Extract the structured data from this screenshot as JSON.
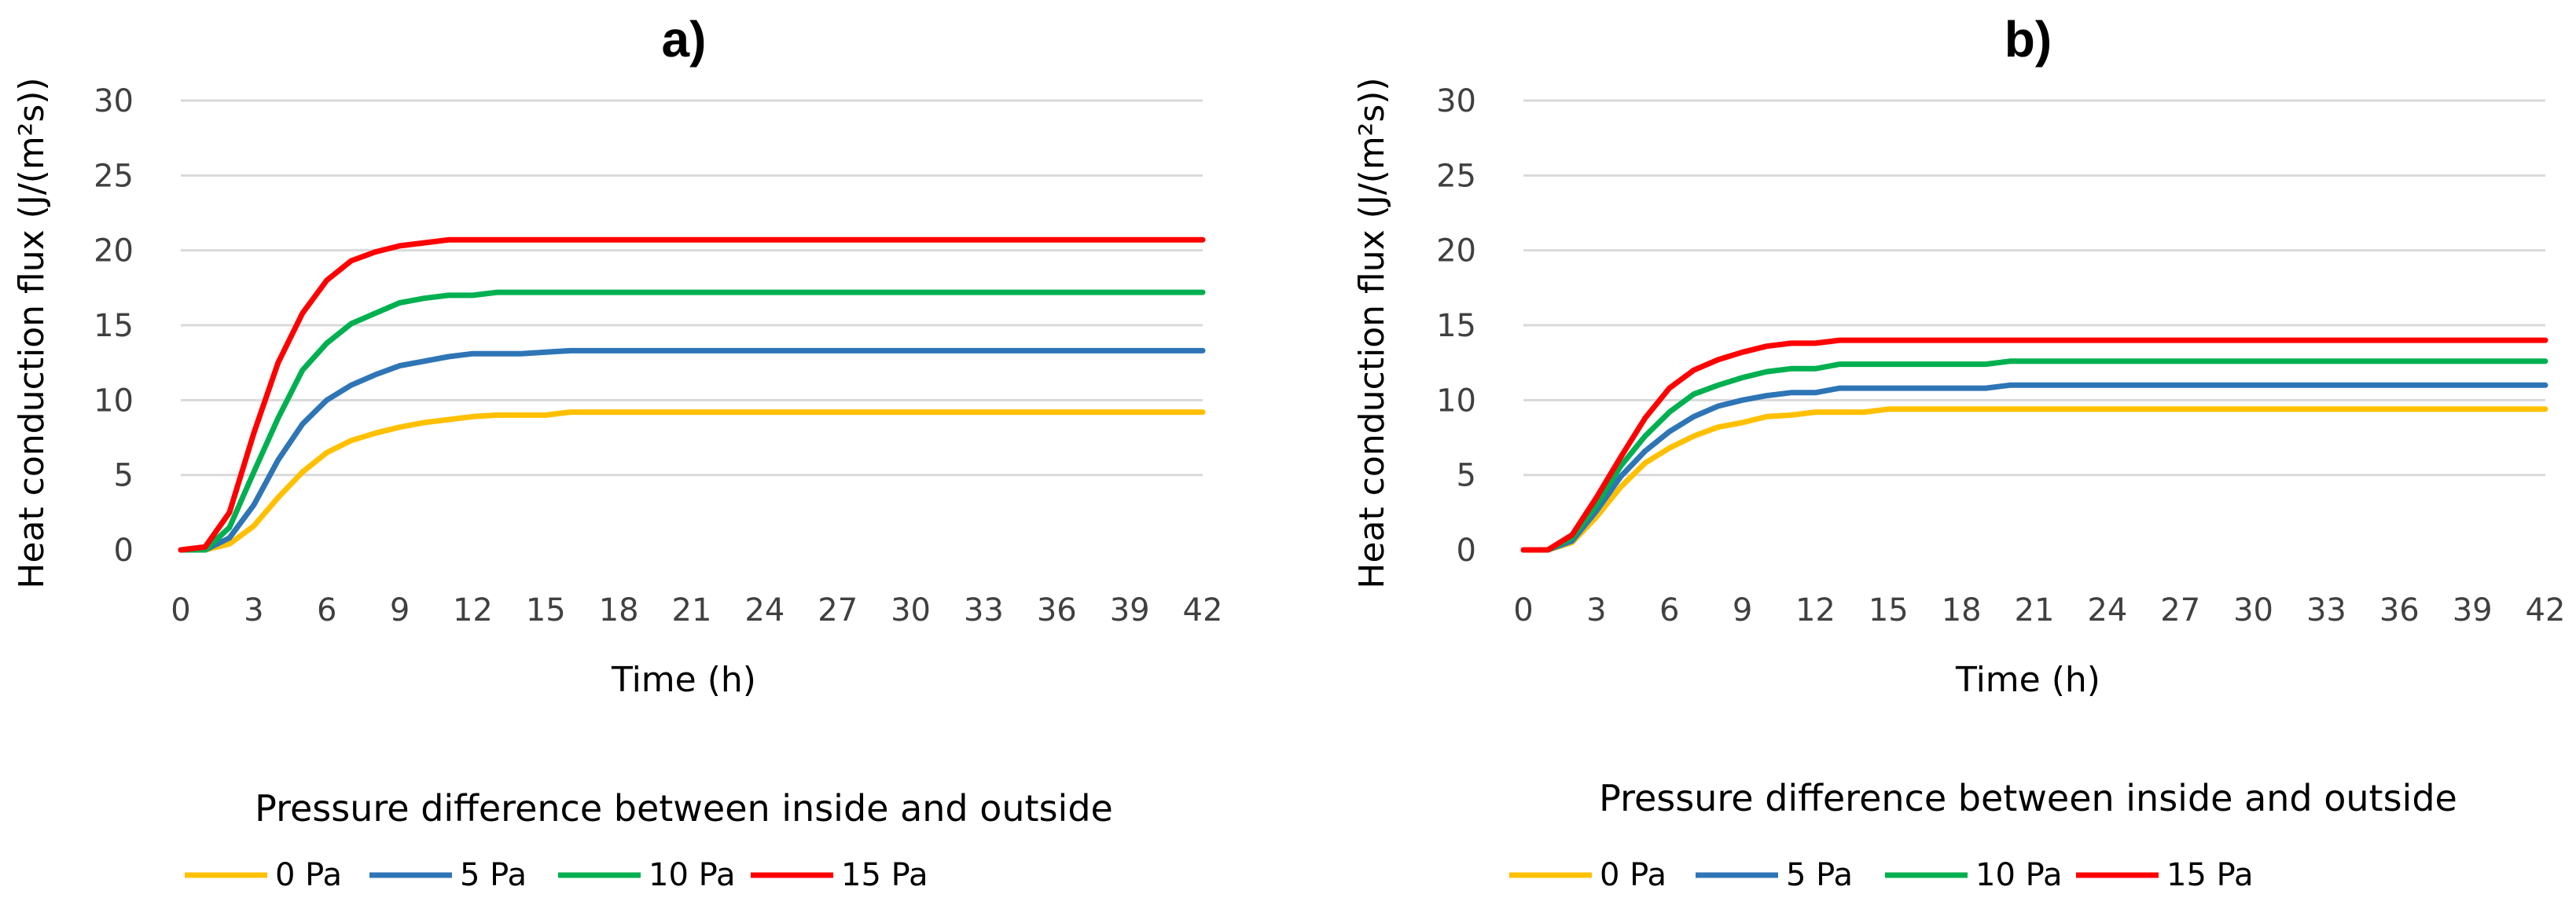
{
  "colors": {
    "0 Pa": "#FFC000",
    "5 Pa": "#2E75B6",
    "10 Pa": "#00B050",
    "15 Pa": "#FF0000"
  },
  "chart_data": [
    {
      "type": "line",
      "title": "a)",
      "xlabel": "Time (h)",
      "ylabel": "Heat conduction flux (J/(m²s))",
      "xlim": [
        0,
        42
      ],
      "ylim": [
        0,
        30
      ],
      "xticks": [
        "0",
        "3",
        "6",
        "9",
        "12",
        "15",
        "18",
        "21",
        "24",
        "27",
        "30",
        "33",
        "36",
        "39",
        "42"
      ],
      "yticks": [
        "0",
        "5",
        "10",
        "15",
        "20",
        "25",
        "30"
      ],
      "grid": true,
      "legend_title": "Pressure difference between inside and outside",
      "legend_position": "bottom",
      "x": [
        0,
        1,
        2,
        3,
        4,
        5,
        6,
        7,
        8,
        9,
        10,
        11,
        12,
        13,
        14,
        15,
        16,
        17,
        18,
        19,
        20,
        21,
        22,
        23,
        24,
        25,
        26,
        27,
        28,
        29,
        30,
        31,
        32,
        33,
        34,
        35,
        36,
        37,
        38,
        39,
        40,
        41,
        42
      ],
      "series": [
        {
          "name": "0 Pa",
          "values": [
            0,
            0,
            0.4,
            1.6,
            3.5,
            5.2,
            6.5,
            7.3,
            7.8,
            8.2,
            8.5,
            8.7,
            8.9,
            9.0,
            9.0,
            9.0,
            9.2,
            9.2,
            9.2,
            9.2,
            9.2,
            9.2,
            9.2,
            9.2,
            9.2,
            9.2,
            9.2,
            9.2,
            9.2,
            9.2,
            9.2,
            9.2,
            9.2,
            9.2,
            9.2,
            9.2,
            9.2,
            9.2,
            9.2,
            9.2,
            9.2,
            9.2,
            9.2
          ]
        },
        {
          "name": "5 Pa",
          "values": [
            0,
            0,
            0.8,
            3.0,
            6.0,
            8.4,
            10.0,
            11.0,
            11.7,
            12.3,
            12.6,
            12.9,
            13.1,
            13.1,
            13.1,
            13.2,
            13.3,
            13.3,
            13.3,
            13.3,
            13.3,
            13.3,
            13.3,
            13.3,
            13.3,
            13.3,
            13.3,
            13.3,
            13.3,
            13.3,
            13.3,
            13.3,
            13.3,
            13.3,
            13.3,
            13.3,
            13.3,
            13.3,
            13.3,
            13.3,
            13.3,
            13.3,
            13.3
          ]
        },
        {
          "name": "10 Pa",
          "values": [
            0,
            0,
            1.5,
            5.2,
            8.8,
            12.0,
            13.8,
            15.1,
            15.8,
            16.5,
            16.8,
            17.0,
            17.0,
            17.2,
            17.2,
            17.2,
            17.2,
            17.2,
            17.2,
            17.2,
            17.2,
            17.2,
            17.2,
            17.2,
            17.2,
            17.2,
            17.2,
            17.2,
            17.2,
            17.2,
            17.2,
            17.2,
            17.2,
            17.2,
            17.2,
            17.2,
            17.2,
            17.2,
            17.2,
            17.2,
            17.2,
            17.2,
            17.2
          ]
        },
        {
          "name": "15 Pa",
          "values": [
            0,
            0.2,
            2.5,
            7.8,
            12.5,
            15.8,
            18.0,
            19.3,
            19.9,
            20.3,
            20.5,
            20.7,
            20.7,
            20.7,
            20.7,
            20.7,
            20.7,
            20.7,
            20.7,
            20.7,
            20.7,
            20.7,
            20.7,
            20.7,
            20.7,
            20.7,
            20.7,
            20.7,
            20.7,
            20.7,
            20.7,
            20.7,
            20.7,
            20.7,
            20.7,
            20.7,
            20.7,
            20.7,
            20.7,
            20.7,
            20.7,
            20.7,
            20.7
          ]
        }
      ]
    },
    {
      "type": "line",
      "title": "b)",
      "xlabel": "Time (h)",
      "ylabel": "Heat conduction flux (J/(m²s))",
      "xlim": [
        0,
        42
      ],
      "ylim": [
        0,
        30
      ],
      "xticks": [
        "0",
        "3",
        "6",
        "9",
        "12",
        "15",
        "18",
        "21",
        "24",
        "27",
        "30",
        "33",
        "36",
        "39",
        "42"
      ],
      "yticks": [
        "0",
        "5",
        "10",
        "15",
        "20",
        "25",
        "30"
      ],
      "grid": true,
      "legend_title": "Pressure difference between inside and outside",
      "legend_position": "bottom",
      "x": [
        0,
        1,
        2,
        3,
        4,
        5,
        6,
        7,
        8,
        9,
        10,
        11,
        12,
        13,
        14,
        15,
        16,
        17,
        18,
        19,
        20,
        21,
        22,
        23,
        24,
        25,
        26,
        27,
        28,
        29,
        30,
        31,
        32,
        33,
        34,
        35,
        36,
        37,
        38,
        39,
        40,
        41,
        42
      ],
      "series": [
        {
          "name": "0 Pa",
          "values": [
            0,
            0,
            0.5,
            2.2,
            4.2,
            5.8,
            6.8,
            7.6,
            8.2,
            8.5,
            8.9,
            9.0,
            9.2,
            9.2,
            9.2,
            9.4,
            9.4,
            9.4,
            9.4,
            9.4,
            9.4,
            9.4,
            9.4,
            9.4,
            9.4,
            9.4,
            9.4,
            9.4,
            9.4,
            9.4,
            9.4,
            9.4,
            9.4,
            9.4,
            9.4,
            9.4,
            9.4,
            9.4,
            9.4,
            9.4,
            9.4,
            9.4,
            9.4
          ]
        },
        {
          "name": "5 Pa",
          "values": [
            0,
            0,
            0.6,
            2.6,
            4.9,
            6.6,
            7.9,
            8.9,
            9.6,
            10.0,
            10.3,
            10.5,
            10.5,
            10.8,
            10.8,
            10.8,
            10.8,
            10.8,
            10.8,
            10.8,
            11.0,
            11.0,
            11.0,
            11.0,
            11.0,
            11.0,
            11.0,
            11.0,
            11.0,
            11.0,
            11.0,
            11.0,
            11.0,
            11.0,
            11.0,
            11.0,
            11.0,
            11.0,
            11.0,
            11.0,
            11.0,
            11.0,
            11.0
          ]
        },
        {
          "name": "10 Pa",
          "values": [
            0,
            0,
            0.8,
            3.0,
            5.6,
            7.6,
            9.2,
            10.4,
            11.0,
            11.5,
            11.9,
            12.1,
            12.1,
            12.4,
            12.4,
            12.4,
            12.4,
            12.4,
            12.4,
            12.4,
            12.6,
            12.6,
            12.6,
            12.6,
            12.6,
            12.6,
            12.6,
            12.6,
            12.6,
            12.6,
            12.6,
            12.6,
            12.6,
            12.6,
            12.6,
            12.6,
            12.6,
            12.6,
            12.6,
            12.6,
            12.6,
            12.6,
            12.6
          ]
        },
        {
          "name": "15 Pa",
          "values": [
            0,
            0,
            1.0,
            3.5,
            6.2,
            8.8,
            10.8,
            12.0,
            12.7,
            13.2,
            13.6,
            13.8,
            13.8,
            14.0,
            14.0,
            14.0,
            14.0,
            14.0,
            14.0,
            14.0,
            14.0,
            14.0,
            14.0,
            14.0,
            14.0,
            14.0,
            14.0,
            14.0,
            14.0,
            14.0,
            14.0,
            14.0,
            14.0,
            14.0,
            14.0,
            14.0,
            14.0,
            14.0,
            14.0,
            14.0,
            14.0,
            14.0,
            14.0
          ]
        }
      ]
    }
  ]
}
